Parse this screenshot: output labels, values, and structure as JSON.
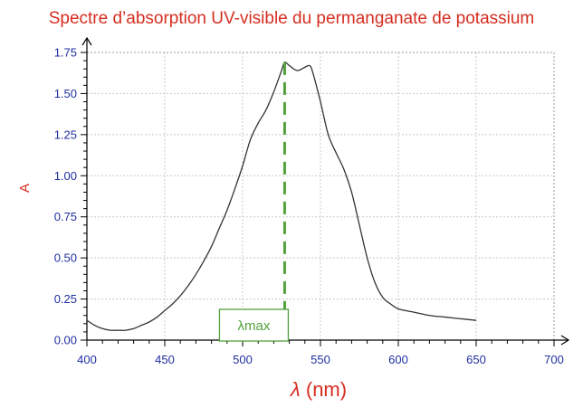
{
  "chart_data": {
    "type": "line",
    "title": "Spectre d’absorption UV-visible du permanganate de potassium",
    "xlabel_symbol": "λ",
    "xlabel_unit": " (nm)",
    "ylabel": "A",
    "xlim": [
      400,
      700
    ],
    "ylim": [
      0,
      1.75
    ],
    "x_ticks": [
      400,
      450,
      500,
      550,
      600,
      650,
      700
    ],
    "y_ticks": [
      0.0,
      0.25,
      0.5,
      0.75,
      1.0,
      1.25,
      1.5,
      1.75
    ],
    "y_tick_labels": [
      "0.00",
      "0.25",
      "0.50",
      "0.75",
      "1.00",
      "1.25",
      "1.50",
      "1.75"
    ],
    "x_minor_step": 10,
    "y_minor_step": 0.05,
    "grid": true,
    "series": [
      {
        "x": [
          400,
          405,
          410,
          415,
          420,
          425,
          430,
          435,
          440,
          445,
          450,
          455,
          460,
          465,
          470,
          475,
          480,
          485,
          490,
          495,
          500,
          505,
          510,
          515,
          520,
          525,
          527,
          530,
          535,
          540,
          543,
          545,
          550,
          555,
          560,
          565,
          570,
          575,
          580,
          585,
          590,
          595,
          600,
          610,
          620,
          630,
          640,
          650
        ],
        "y": [
          0.12,
          0.09,
          0.07,
          0.06,
          0.06,
          0.06,
          0.07,
          0.09,
          0.11,
          0.14,
          0.18,
          0.22,
          0.27,
          0.33,
          0.4,
          0.48,
          0.57,
          0.68,
          0.79,
          0.92,
          1.06,
          1.22,
          1.32,
          1.4,
          1.51,
          1.64,
          1.69,
          1.67,
          1.64,
          1.66,
          1.67,
          1.63,
          1.45,
          1.25,
          1.14,
          1.04,
          0.9,
          0.7,
          0.5,
          0.35,
          0.26,
          0.22,
          0.19,
          0.17,
          0.15,
          0.14,
          0.13,
          0.12
        ],
        "color": "#333333"
      }
    ],
    "annotations": [
      {
        "type": "vline",
        "x": 527,
        "y_top": 1.69,
        "color": "#52a23c",
        "label": "λmax"
      }
    ]
  }
}
